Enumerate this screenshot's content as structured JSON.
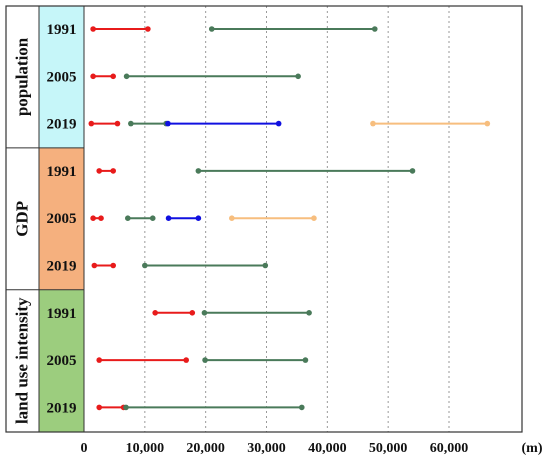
{
  "chart_data": {
    "type": "dumbbell",
    "x_unit": "(m)",
    "xlim": [
      0,
      72000
    ],
    "x_ticks": [
      0,
      10000,
      20000,
      30000,
      40000,
      50000,
      60000
    ],
    "x_tick_labels": [
      "0",
      "10,000",
      "20,000",
      "30,000",
      "40,000",
      "50,000",
      "60,000"
    ],
    "grid": "vertical dotted",
    "colors": {
      "red": "#e81b1b",
      "green": "#4a7a5a",
      "blue": "#1010e0",
      "orange": "#f7be7e",
      "population_band": "#c6f6f9",
      "gdp_band": "#f5b07e",
      "land_use_band": "#9ccd7e"
    },
    "groups": [
      {
        "label": "population",
        "band_color": "#c6f6f9",
        "rows": [
          {
            "year": "1991",
            "segments": [
              {
                "color": "red",
                "start": 1500,
                "end": 10500
              },
              {
                "color": "green",
                "start": 21000,
                "end": 47800
              }
            ]
          },
          {
            "year": "2005",
            "segments": [
              {
                "color": "red",
                "start": 1500,
                "end": 4800
              },
              {
                "color": "green",
                "start": 7000,
                "end": 35200
              }
            ]
          },
          {
            "year": "2019",
            "segments": [
              {
                "color": "red",
                "start": 1200,
                "end": 5500
              },
              {
                "color": "green",
                "start": 7700,
                "end": 13500
              },
              {
                "color": "blue",
                "start": 13800,
                "end": 32000
              },
              {
                "color": "orange",
                "start": 47500,
                "end": 66300
              }
            ]
          }
        ]
      },
      {
        "label": "GDP",
        "band_color": "#f5b07e",
        "rows": [
          {
            "year": "1991",
            "segments": [
              {
                "color": "red",
                "start": 2500,
                "end": 4800
              },
              {
                "color": "green",
                "start": 18800,
                "end": 54000
              }
            ]
          },
          {
            "year": "2005",
            "segments": [
              {
                "color": "red",
                "start": 1500,
                "end": 2800
              },
              {
                "color": "green",
                "start": 7200,
                "end": 11300
              },
              {
                "color": "blue",
                "start": 13900,
                "end": 18800
              },
              {
                "color": "orange",
                "start": 24300,
                "end": 37800
              }
            ]
          },
          {
            "year": "2019",
            "segments": [
              {
                "color": "red",
                "start": 1700,
                "end": 4800
              },
              {
                "color": "green",
                "start": 10000,
                "end": 29800
              }
            ]
          }
        ]
      },
      {
        "label": "land use intensity",
        "band_color": "#9ccd7e",
        "rows": [
          {
            "year": "1991",
            "segments": [
              {
                "color": "red",
                "start": 11700,
                "end": 17800
              },
              {
                "color": "green",
                "start": 19800,
                "end": 37000
              }
            ]
          },
          {
            "year": "2005",
            "segments": [
              {
                "color": "red",
                "start": 2500,
                "end": 16800
              },
              {
                "color": "green",
                "start": 19900,
                "end": 36400
              }
            ]
          },
          {
            "year": "2019",
            "segments": [
              {
                "color": "red",
                "start": 2500,
                "end": 6500
              },
              {
                "color": "green",
                "start": 6900,
                "end": 35800
              }
            ]
          }
        ]
      }
    ]
  }
}
